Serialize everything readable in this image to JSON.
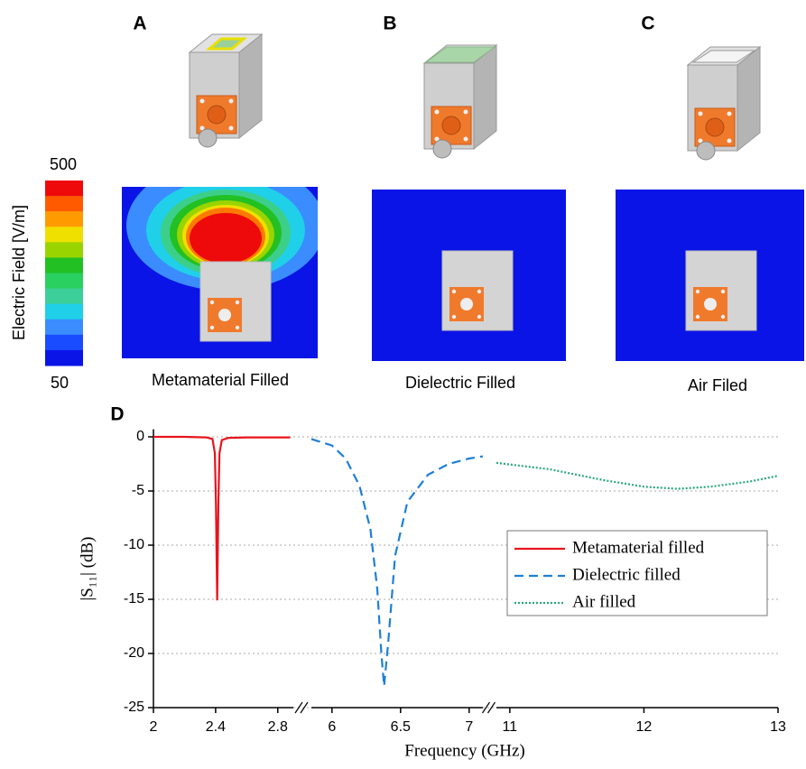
{
  "panels": {
    "labels": [
      "A",
      "B",
      "C",
      "D"
    ],
    "captions": [
      "Metamaterial Filled",
      "Dielectric Filled",
      "Air Filed"
    ]
  },
  "colorbar": {
    "title": "Electric Field [V/m]",
    "max": 500,
    "min": 50,
    "colors": [
      "#ee0a0a",
      "#ff5a00",
      "#ff9a00",
      "#f0e000",
      "#9ad400",
      "#22c022",
      "#2ad060",
      "#3ccf9a",
      "#1fd0e8",
      "#3a8cff",
      "#1a4cff",
      "#0a14e6"
    ]
  },
  "chart_data": {
    "type": "line",
    "x_label": "Frequency (GHz)",
    "y_label": "|S₁₁| (dB)",
    "x_segments": [
      {
        "xlim": [
          2,
          2.9
        ],
        "xticks": [
          2,
          2.4,
          2.8
        ]
      },
      {
        "xlim": [
          5.85,
          7.1
        ],
        "xticks": [
          6,
          6.5,
          7
        ]
      },
      {
        "xlim": [
          10.9,
          13
        ],
        "xticks": [
          11,
          12,
          13
        ]
      }
    ],
    "ylim": [
      -25,
      0.7
    ],
    "yticks": [
      -25,
      -20,
      -15,
      -10,
      -5,
      0
    ],
    "grid": true,
    "legend": "center right",
    "series": [
      {
        "name": "Metamaterial filled",
        "color": "#e8141e",
        "dash": "solid",
        "x": [
          2,
          2.2,
          2.34,
          2.38,
          2.395,
          2.402,
          2.41,
          2.418,
          2.425,
          2.44,
          2.48,
          2.6,
          2.88
        ],
        "values": [
          0,
          0,
          -0.05,
          -0.2,
          -1.5,
          -6,
          -15.1,
          -6,
          -1.5,
          -0.3,
          -0.1,
          -0.05,
          -0.05
        ]
      },
      {
        "name": "Dielectric filled",
        "color": "#1e7fd8",
        "dash": "dashed",
        "x": [
          5.85,
          6.0,
          6.1,
          6.2,
          6.28,
          6.33,
          6.36,
          6.38,
          6.41,
          6.46,
          6.55,
          6.7,
          6.85,
          7.0,
          7.1
        ],
        "values": [
          -0.2,
          -0.8,
          -2,
          -4.5,
          -8.5,
          -14,
          -20,
          -23,
          -19,
          -11,
          -6,
          -3.5,
          -2.5,
          -2,
          -1.8
        ]
      },
      {
        "name": "Air filled",
        "color": "#2aa87a",
        "dash": "dotted",
        "x": [
          10.9,
          11.3,
          11.7,
          12,
          12.25,
          12.5,
          12.8,
          13
        ],
        "values": [
          -2.4,
          -3,
          -4,
          -4.6,
          -4.8,
          -4.6,
          -4.1,
          -3.6
        ]
      }
    ]
  }
}
